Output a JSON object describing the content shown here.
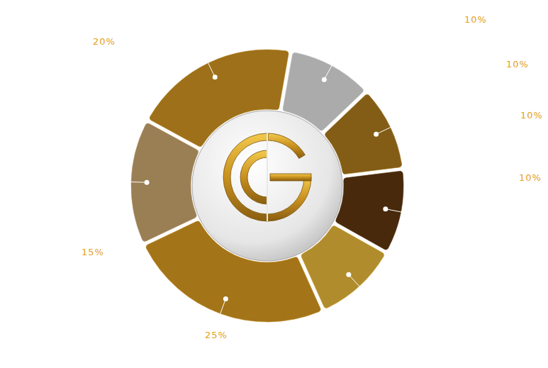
{
  "chart_data": {
    "type": "donut",
    "values": [
      10,
      10,
      10,
      10,
      25,
      15,
      20
    ],
    "value_labels": [
      "10%",
      "10%",
      "10%",
      "10%",
      "25%",
      "15%",
      "20%"
    ],
    "colors": [
      "#dcdcdc",
      "#a8771c",
      "#5c3410",
      "#e2b43a",
      "#d3951f",
      "#c6a26c",
      "#c99020"
    ],
    "data_labels": true
  }
}
